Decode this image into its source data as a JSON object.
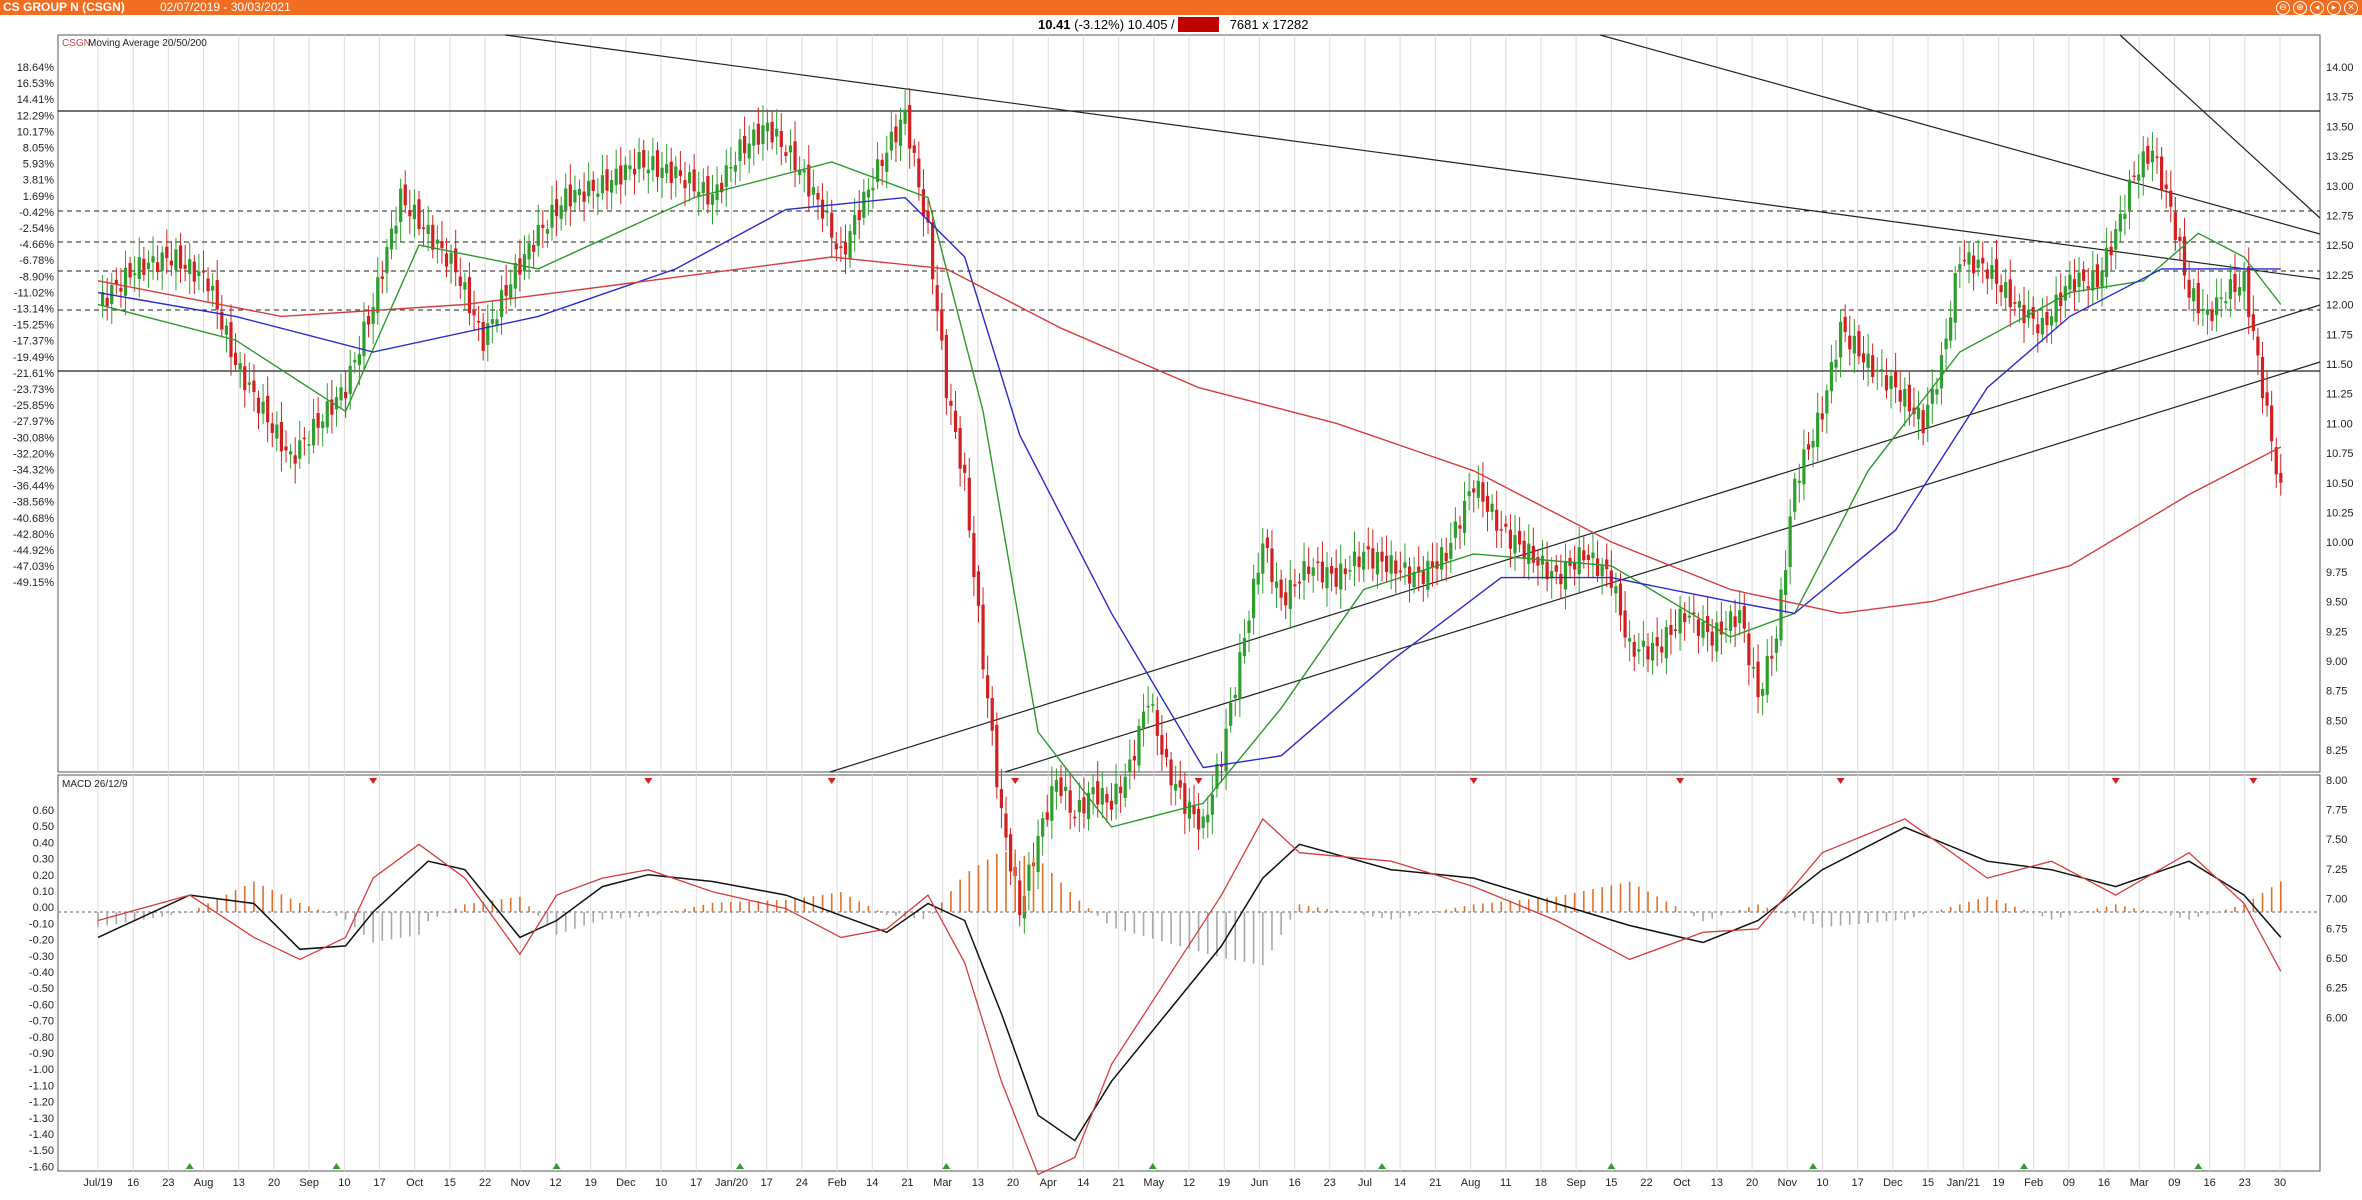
{
  "window": {
    "title": "CS GROUP N (CSGN)",
    "date_range": "02/07/2019 - 30/03/2021",
    "buttons": [
      "⊖",
      "⊕",
      "◂",
      "▸",
      "✕"
    ]
  },
  "quote": {
    "last": "10.41",
    "change": "(-3.12%)",
    "open": "10.405",
    "separator": "/",
    "highlight": "10.41",
    "volume": "7681 x 17282"
  },
  "colors": {
    "accent": "#f26d21",
    "up": "#2e9e2e",
    "down": "#d22020",
    "ma20": "#2a9a2a",
    "ma50": "#2a2acc",
    "ma200": "#d63c3c",
    "macd": "#111111",
    "signal": "#d63c3c",
    "hist_pos": "#e0702a",
    "hist_neg": "#a8a8a8"
  },
  "price_panel": {
    "label_symbol": "CSGN",
    "label_text": "Moving Average 20/50/200",
    "price_ticks": [
      "14.00",
      "13.75",
      "13.50",
      "13.25",
      "13.00",
      "12.75",
      "12.50",
      "12.25",
      "12.00",
      "11.75",
      "11.50",
      "11.25",
      "11.00",
      "10.75",
      "10.50",
      "10.25",
      "10.00",
      "9.75",
      "9.50",
      "9.25",
      "9.00",
      "8.75",
      "8.50",
      "8.25",
      "8.00",
      "7.75",
      "7.50",
      "7.25",
      "7.00",
      "6.75",
      "6.50",
      "6.25",
      "6.00"
    ],
    "pct_ticks": [
      "18.64%",
      "16.53%",
      "14.41%",
      "12.29%",
      "10.17%",
      "8.05%",
      "5.93%",
      "3.81%",
      "1.69%",
      "-0.42%",
      "-2.54%",
      "-4.66%",
      "-6.78%",
      "-8.90%",
      "-11.02%",
      "-13.14%",
      "-15.25%",
      "-17.37%",
      "-19.49%",
      "-21.61%",
      "-23.73%",
      "-25.85%",
      "-27.97%",
      "-30.08%",
      "-32.20%",
      "-34.32%",
      "-36.44%",
      "-38.56%",
      "-40.68%",
      "-42.80%",
      "-44.92%",
      "-47.03%",
      "-49.15%"
    ]
  },
  "macd_panel": {
    "label": "MACD 26/12/9",
    "ticks": [
      "0.60",
      "0.50",
      "0.40",
      "0.30",
      "0.20",
      "0.10",
      "0.00",
      "-0.10",
      "-0.20",
      "-0.30",
      "-0.40",
      "-0.50",
      "-0.60",
      "-0.70",
      "-0.80",
      "-0.90",
      "-1.00",
      "-1.10",
      "-1.20",
      "-1.30",
      "-1.40",
      "-1.50",
      "-1.60"
    ]
  },
  "x_axis": {
    "labels": [
      "Jul/19",
      "16",
      "23",
      "Aug",
      "13",
      "20",
      "Sep",
      "10",
      "17",
      "Oct",
      "15",
      "22",
      "Nov",
      "12",
      "19",
      "Dec",
      "10",
      "17",
      "Jan/20",
      "17",
      "24",
      "Feb",
      "14",
      "21",
      "Mar",
      "13",
      "20",
      "Apr",
      "14",
      "21",
      "May",
      "12",
      "19",
      "Jun",
      "16",
      "23",
      "Jul",
      "14",
      "21",
      "Aug",
      "11",
      "18",
      "Sep",
      "15",
      "22",
      "Oct",
      "13",
      "20",
      "Nov",
      "10",
      "17",
      "Dec",
      "15",
      "Jan/21",
      "19",
      "Feb",
      "09",
      "16",
      "Mar",
      "09",
      "16",
      "23",
      "30"
    ]
  },
  "chart_data": [
    {
      "type": "candlestick",
      "title": "CSGN Moving Average 20/50/200",
      "ylim": [
        5.75,
        14.25
      ],
      "series": [
        {
          "name": "Close",
          "points": [
            [
              0,
              12.0
            ],
            [
              8,
              12.3
            ],
            [
              16,
              12.4
            ],
            [
              24,
              12.2
            ],
            [
              30,
              11.5
            ],
            [
              36,
              11.1
            ],
            [
              42,
              10.7
            ],
            [
              48,
              11.0
            ],
            [
              54,
              11.3
            ],
            [
              60,
              12.0
            ],
            [
              66,
              12.9
            ],
            [
              72,
              12.6
            ],
            [
              78,
              12.3
            ],
            [
              84,
              11.7
            ],
            [
              90,
              12.2
            ],
            [
              96,
              12.6
            ],
            [
              102,
              12.9
            ],
            [
              110,
              13.0
            ],
            [
              118,
              13.2
            ],
            [
              126,
              13.1
            ],
            [
              134,
              12.9
            ],
            [
              140,
              13.3
            ],
            [
              146,
              13.5
            ],
            [
              152,
              13.2
            ],
            [
              158,
              12.8
            ],
            [
              162,
              12.4
            ],
            [
              166,
              12.8
            ],
            [
              172,
              13.3
            ],
            [
              176,
              13.6
            ],
            [
              181,
              12.6
            ],
            [
              185,
              11.3
            ],
            [
              189,
              10.5
            ],
            [
              193,
              9.0
            ],
            [
              197,
              7.7
            ],
            [
              201,
              6.9
            ],
            [
              205,
              7.5
            ],
            [
              209,
              8.0
            ],
            [
              213,
              7.7
            ],
            [
              217,
              7.9
            ],
            [
              221,
              7.8
            ],
            [
              225,
              8.1
            ],
            [
              229,
              8.7
            ],
            [
              233,
              8.1
            ],
            [
              237,
              7.8
            ],
            [
              241,
              7.6
            ],
            [
              245,
              8.2
            ],
            [
              250,
              9.2
            ],
            [
              254,
              10.0
            ],
            [
              258,
              9.5
            ],
            [
              264,
              9.8
            ],
            [
              270,
              9.7
            ],
            [
              276,
              9.9
            ],
            [
              282,
              9.8
            ],
            [
              288,
              9.7
            ],
            [
              294,
              9.9
            ],
            [
              300,
              10.5
            ],
            [
              306,
              10.1
            ],
            [
              312,
              9.9
            ],
            [
              318,
              9.7
            ],
            [
              324,
              9.9
            ],
            [
              330,
              9.7
            ],
            [
              334,
              9.1
            ],
            [
              340,
              9.1
            ],
            [
              346,
              9.4
            ],
            [
              352,
              9.2
            ],
            [
              358,
              9.4
            ],
            [
              362,
              8.7
            ],
            [
              366,
              9.2
            ],
            [
              370,
              10.5
            ],
            [
              376,
              11.1
            ],
            [
              380,
              11.8
            ],
            [
              386,
              11.5
            ],
            [
              392,
              11.3
            ],
            [
              398,
              11.0
            ],
            [
              402,
              11.5
            ],
            [
              406,
              12.4
            ],
            [
              412,
              12.3
            ],
            [
              418,
              12.0
            ],
            [
              424,
              11.8
            ],
            [
              430,
              12.2
            ],
            [
              436,
              12.2
            ],
            [
              440,
              12.6
            ],
            [
              444,
              13.1
            ],
            [
              448,
              13.3
            ],
            [
              452,
              12.8
            ],
            [
              456,
              12.1
            ],
            [
              460,
              11.9
            ],
            [
              464,
              12.1
            ],
            [
              468,
              12.2
            ],
            [
              472,
              11.3
            ],
            [
              476,
              10.41
            ]
          ]
        },
        {
          "name": "MA20",
          "points": [
            [
              0,
              12.0
            ],
            [
              30,
              11.7
            ],
            [
              54,
              11.1
            ],
            [
              70,
              12.5
            ],
            [
              96,
              12.3
            ],
            [
              130,
              12.9
            ],
            [
              160,
              13.2
            ],
            [
              181,
              12.9
            ],
            [
              193,
              11.1
            ],
            [
              205,
              8.4
            ],
            [
              221,
              7.6
            ],
            [
              241,
              7.8
            ],
            [
              258,
              8.6
            ],
            [
              276,
              9.6
            ],
            [
              300,
              9.9
            ],
            [
              330,
              9.8
            ],
            [
              356,
              9.2
            ],
            [
              370,
              9.4
            ],
            [
              386,
              10.6
            ],
            [
              406,
              11.6
            ],
            [
              430,
              12.1
            ],
            [
              446,
              12.2
            ],
            [
              458,
              12.6
            ],
            [
              468,
              12.4
            ],
            [
              476,
              12.0
            ]
          ]
        },
        {
          "name": "MA50",
          "points": [
            [
              0,
              12.1
            ],
            [
              30,
              11.9
            ],
            [
              60,
              11.6
            ],
            [
              96,
              11.9
            ],
            [
              126,
              12.3
            ],
            [
              150,
              12.8
            ],
            [
              176,
              12.9
            ],
            [
              189,
              12.4
            ],
            [
              201,
              10.9
            ],
            [
              221,
              9.4
            ],
            [
              241,
              8.1
            ],
            [
              258,
              8.2
            ],
            [
              282,
              9.0
            ],
            [
              306,
              9.7
            ],
            [
              330,
              9.7
            ],
            [
              356,
              9.5
            ],
            [
              370,
              9.4
            ],
            [
              392,
              10.1
            ],
            [
              412,
              11.3
            ],
            [
              430,
              11.9
            ],
            [
              450,
              12.3
            ],
            [
              476,
              12.3
            ]
          ]
        },
        {
          "name": "MA200",
          "points": [
            [
              0,
              12.2
            ],
            [
              40,
              11.9
            ],
            [
              80,
              12.0
            ],
            [
              120,
              12.2
            ],
            [
              160,
              12.4
            ],
            [
              185,
              12.3
            ],
            [
              210,
              11.8
            ],
            [
              240,
              11.3
            ],
            [
              270,
              11.0
            ],
            [
              300,
              10.6
            ],
            [
              330,
              10.0
            ],
            [
              356,
              9.6
            ],
            [
              380,
              9.4
            ],
            [
              400,
              9.5
            ],
            [
              430,
              9.8
            ],
            [
              456,
              10.4
            ],
            [
              476,
              10.8
            ]
          ]
        }
      ]
    },
    {
      "type": "line",
      "title": "MACD 26/12/9",
      "ylim": [
        -1.6,
        0.6
      ],
      "series": [
        {
          "name": "MACD",
          "points": [
            [
              0,
              -0.15
            ],
            [
              20,
              0.1
            ],
            [
              34,
              0.05
            ],
            [
              44,
              -0.22
            ],
            [
              54,
              -0.2
            ],
            [
              60,
              0.0
            ],
            [
              72,
              0.3
            ],
            [
              80,
              0.25
            ],
            [
              92,
              -0.15
            ],
            [
              100,
              -0.05
            ],
            [
              110,
              0.15
            ],
            [
              120,
              0.22
            ],
            [
              134,
              0.18
            ],
            [
              150,
              0.1
            ],
            [
              162,
              -0.02
            ],
            [
              172,
              -0.12
            ],
            [
              181,
              0.05
            ],
            [
              189,
              -0.05
            ],
            [
              197,
              -0.6
            ],
            [
              205,
              -1.2
            ],
            [
              213,
              -1.35
            ],
            [
              221,
              -1.0
            ],
            [
              233,
              -0.6
            ],
            [
              245,
              -0.2
            ],
            [
              254,
              0.2
            ],
            [
              262,
              0.4
            ],
            [
              282,
              0.25
            ],
            [
              300,
              0.2
            ],
            [
              318,
              0.05
            ],
            [
              334,
              -0.08
            ],
            [
              350,
              -0.18
            ],
            [
              362,
              -0.05
            ],
            [
              376,
              0.25
            ],
            [
              394,
              0.5
            ],
            [
              412,
              0.3
            ],
            [
              426,
              0.25
            ],
            [
              440,
              0.15
            ],
            [
              456,
              0.3
            ],
            [
              468,
              0.1
            ],
            [
              476,
              -0.15
            ]
          ]
        },
        {
          "name": "Signal",
          "points": [
            [
              0,
              -0.05
            ],
            [
              20,
              0.1
            ],
            [
              34,
              -0.15
            ],
            [
              44,
              -0.28
            ],
            [
              54,
              -0.15
            ],
            [
              60,
              0.2
            ],
            [
              70,
              0.4
            ],
            [
              80,
              0.2
            ],
            [
              92,
              -0.25
            ],
            [
              100,
              0.1
            ],
            [
              110,
              0.2
            ],
            [
              120,
              0.25
            ],
            [
              134,
              0.12
            ],
            [
              150,
              0.02
            ],
            [
              162,
              -0.15
            ],
            [
              172,
              -0.1
            ],
            [
              181,
              0.1
            ],
            [
              189,
              -0.3
            ],
            [
              197,
              -1.0
            ],
            [
              205,
              -1.55
            ],
            [
              213,
              -1.45
            ],
            [
              221,
              -0.9
            ],
            [
              233,
              -0.4
            ],
            [
              245,
              0.1
            ],
            [
              254,
              0.55
            ],
            [
              262,
              0.35
            ],
            [
              282,
              0.3
            ],
            [
              300,
              0.15
            ],
            [
              318,
              -0.05
            ],
            [
              334,
              -0.28
            ],
            [
              350,
              -0.12
            ],
            [
              362,
              -0.1
            ],
            [
              376,
              0.35
            ],
            [
              394,
              0.55
            ],
            [
              412,
              0.2
            ],
            [
              426,
              0.3
            ],
            [
              440,
              0.1
            ],
            [
              456,
              0.35
            ],
            [
              468,
              0.05
            ],
            [
              476,
              -0.35
            ]
          ]
        }
      ]
    }
  ]
}
